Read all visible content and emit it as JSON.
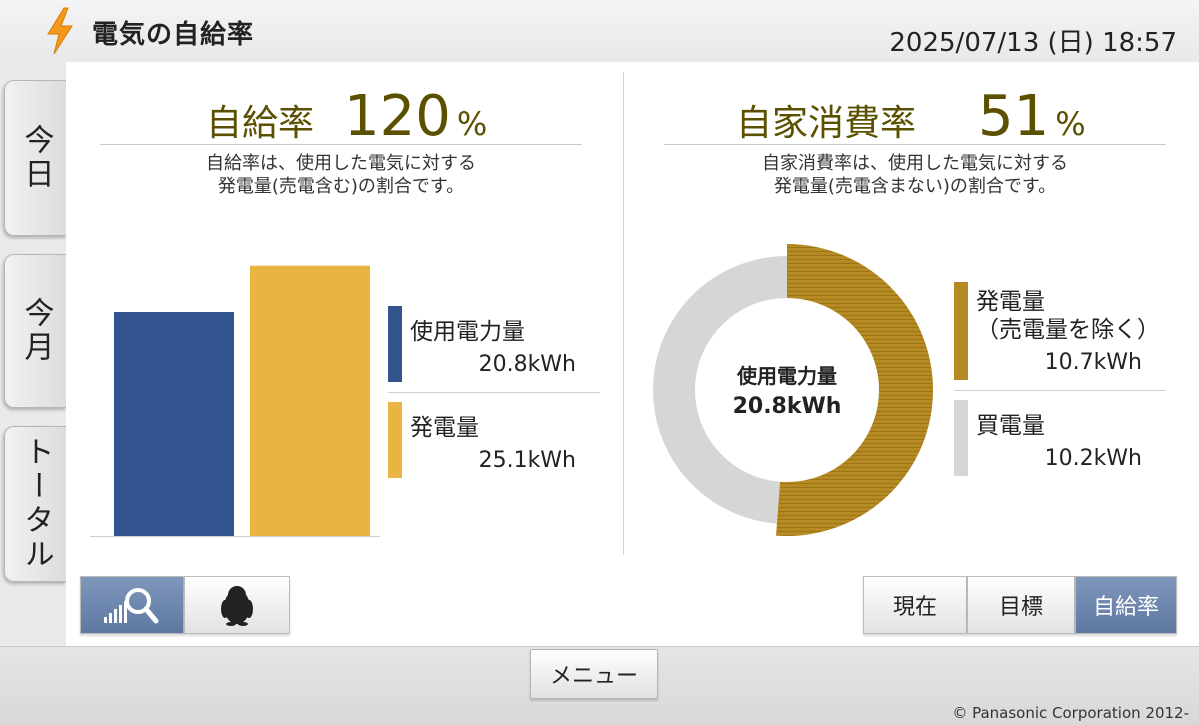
{
  "header": {
    "title": "電気の自給率",
    "datetime": "2025/07/13 (日) 18:57",
    "icon": "lightning-bolt-icon"
  },
  "tabs": [
    {
      "label": "今日",
      "active": true
    },
    {
      "label": "今月",
      "active": false
    },
    {
      "label": "トータル",
      "active": false
    }
  ],
  "self_sufficiency": {
    "label": "自給率",
    "value": "120",
    "unit": "%",
    "desc_line1": "自給率は、使用した電気に対する",
    "desc_line2": "発電量(売電含む)の割合です。",
    "legend": [
      {
        "label": "使用電力量",
        "value": "20.8kWh",
        "color": "#34548f"
      },
      {
        "label": "発電量",
        "value": "25.1kWh",
        "color": "#e9b43f"
      }
    ]
  },
  "self_consumption": {
    "label": "自家消費率",
    "value": "51",
    "unit": "%",
    "desc_line1": "自家消費率は、使用した電気に対する",
    "desc_line2": "発電量(売電含まない)の割合です。",
    "center_label": "使用電力量",
    "center_value": "20.8kWh",
    "legend": [
      {
        "label_line1": "発電量",
        "label_line2": "（売電量を除く）",
        "value": "10.7kWh",
        "color": "#b58a22"
      },
      {
        "label_line1": "買電量",
        "label_line2": "",
        "value": "10.2kWh",
        "color": "#d6d6d6"
      }
    ]
  },
  "chart_data": [
    {
      "type": "bar",
      "categories": [
        "使用電力量",
        "発電量"
      ],
      "values": [
        20.8,
        25.1
      ],
      "unit": "kWh",
      "colors": [
        "#34548f",
        "#e9b43f"
      ]
    },
    {
      "type": "pie",
      "categories": [
        "発電量（売電量を除く）",
        "買電量"
      ],
      "values": [
        10.7,
        10.2
      ],
      "unit": "kWh",
      "colors": [
        "#b58a22",
        "#d6d6d6"
      ]
    }
  ],
  "left_buttons": [
    {
      "icon": "signal-search-icon",
      "selected": true
    },
    {
      "icon": "penguin-icon",
      "selected": false
    }
  ],
  "right_buttons": [
    {
      "label": "現在",
      "selected": false
    },
    {
      "label": "目標",
      "selected": false
    },
    {
      "label": "自給率",
      "selected": true
    }
  ],
  "footer": {
    "menu_label": "メニュー",
    "copyright": "© Panasonic Corporation 2012-"
  }
}
